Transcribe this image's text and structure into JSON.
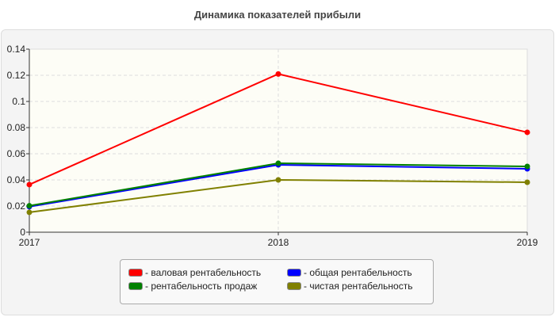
{
  "chart_data": {
    "type": "line",
    "title": "Динамика показателей прибыли",
    "categories": [
      "2017",
      "2018",
      "2019"
    ],
    "ylim": [
      0,
      0.14
    ],
    "yticks": [
      "0",
      "0.02",
      "0.04",
      "0.06",
      "0.08",
      "0.1",
      "0.12",
      "0.14"
    ],
    "grid": true,
    "legend_position": "bottom",
    "series": [
      {
        "name": "- валовая рентабельность",
        "color": "#ff0000",
        "values": [
          0.0364,
          0.121,
          0.0764
        ]
      },
      {
        "name": "- общая рентабельность",
        "color": "#0000ff",
        "values": [
          0.0195,
          0.0515,
          0.0485
        ]
      },
      {
        "name": "- рентабельность продаж",
        "color": "#008000",
        "values": [
          0.0202,
          0.0527,
          0.0503
        ]
      },
      {
        "name": "- чистая рентабельность",
        "color": "#808000",
        "values": [
          0.0152,
          0.04,
          0.0382
        ]
      }
    ]
  }
}
